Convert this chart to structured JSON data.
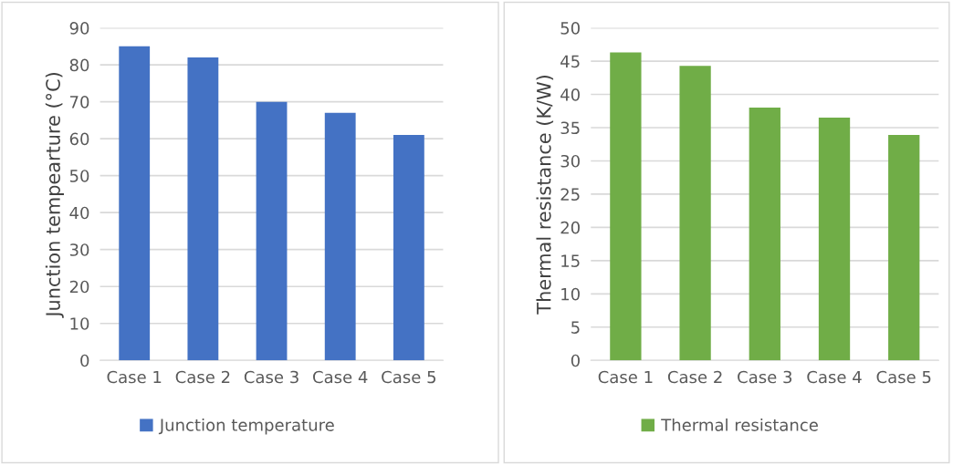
{
  "chart_data": [
    {
      "type": "bar",
      "ylabel": "Junction tempearture (°C)",
      "categories": [
        "Case 1",
        "Case 2",
        "Case 3",
        "Case 4",
        "Case 5"
      ],
      "series": [
        {
          "name": "Junction temperature",
          "color": "#4472c4",
          "values": [
            85,
            82,
            70,
            67,
            61
          ]
        }
      ],
      "ylim": [
        0,
        90
      ],
      "yticks": [
        0,
        10,
        20,
        30,
        40,
        50,
        60,
        70,
        80,
        90
      ],
      "grid": "y",
      "legend": "bottom"
    },
    {
      "type": "bar",
      "ylabel": "Thermal resistance (K/W)",
      "categories": [
        "Case 1",
        "Case 2",
        "Case 3",
        "Case 4",
        "Case 5"
      ],
      "series": [
        {
          "name": "Thermal resistance",
          "color": "#70ad47",
          "values": [
            46.3,
            44.3,
            38.0,
            36.5,
            33.9
          ]
        }
      ],
      "ylim": [
        0,
        50
      ],
      "yticks": [
        0,
        5,
        10,
        15,
        20,
        25,
        30,
        35,
        40,
        45,
        50
      ],
      "grid": "y",
      "legend": "bottom"
    }
  ]
}
